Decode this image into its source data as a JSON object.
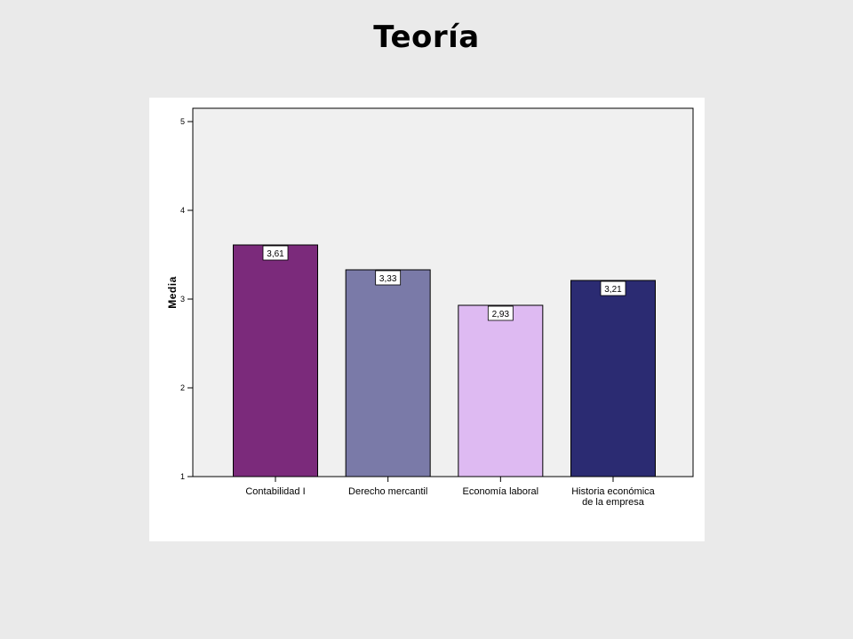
{
  "slide": {
    "title": "Teoría"
  },
  "chart_data": {
    "type": "bar",
    "title": "",
    "xlabel": "",
    "ylabel": "Media",
    "ylim": [
      1,
      5
    ],
    "yticks": [
      "1",
      "2",
      "3",
      "4",
      "5"
    ],
    "grid": false,
    "categories": [
      [
        "Contabilidad I"
      ],
      [
        "Derecho mercantil"
      ],
      [
        "Economía laboral"
      ],
      [
        "Historia económica",
        "de la empresa"
      ]
    ],
    "values": [
      3.61,
      3.33,
      2.93,
      3.21
    ],
    "data_labels": [
      "3,61",
      "3,33",
      "2,93",
      "3,21"
    ],
    "colors": [
      "#7b2a7b",
      "#7a7aa8",
      "#debaf2",
      "#2b2b72"
    ],
    "plot_background": "#f0f0f0"
  }
}
